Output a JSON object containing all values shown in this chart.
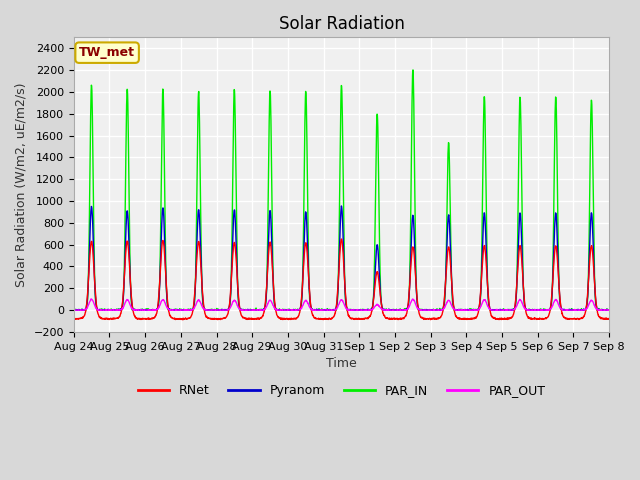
{
  "title": "Solar Radiation",
  "ylabel": "Solar Radiation (W/m2, uE/m2/s)",
  "xlabel": "Time",
  "ylim": [
    -200,
    2500
  ],
  "yticks": [
    -200,
    0,
    200,
    400,
    600,
    800,
    1000,
    1200,
    1400,
    1600,
    1800,
    2000,
    2200,
    2400
  ],
  "x_labels": [
    "Aug 24",
    "Aug 25",
    "Aug 26",
    "Aug 27",
    "Aug 28",
    "Aug 29",
    "Aug 30",
    "Aug 31",
    "Sep 1",
    "Sep 2",
    "Sep 3",
    "Sep 4",
    "Sep 5",
    "Sep 6",
    "Sep 7",
    "Sep 8"
  ],
  "num_days": 15,
  "fig_bg_color": "#d8d8d8",
  "plot_bg_color": "#f0f0f0",
  "legend_label": "TW_met",
  "series_names": [
    "RNet",
    "Pyranom",
    "PAR_IN",
    "PAR_OUT"
  ],
  "series_colors": [
    "#ff0000",
    "#0000cc",
    "#00ee00",
    "#ff00ff"
  ],
  "line_width": 1.0,
  "title_fontsize": 12,
  "axis_fontsize": 9,
  "tick_fontsize": 8,
  "legend_fontsize": 9,
  "grid_color": "#ffffff",
  "grid_linewidth": 1.0,
  "points_per_day": 144,
  "par_in_peaks": [
    2060,
    2030,
    2030,
    2000,
    2020,
    2010,
    2000,
    2060,
    1800,
    2210,
    1540,
    1960,
    1960,
    1960,
    1930
  ],
  "pyranom_peaks": [
    950,
    910,
    940,
    920,
    920,
    910,
    900,
    950,
    600,
    870,
    870,
    890,
    890,
    890,
    890
  ],
  "rnet_peaks": [
    630,
    635,
    640,
    630,
    620,
    620,
    620,
    650,
    350,
    580,
    580,
    590,
    590,
    590,
    590
  ],
  "par_out_peaks": [
    100,
    95,
    95,
    92,
    90,
    90,
    88,
    95,
    50,
    100,
    90,
    95,
    95,
    95,
    90
  ],
  "rnet_night": -80,
  "par_in_sigma": 0.045,
  "pyranom_sigma": 0.055,
  "rnet_sigma": 0.07,
  "rnet_night_sigma": 0.12,
  "par_out_sigma": 0.07
}
